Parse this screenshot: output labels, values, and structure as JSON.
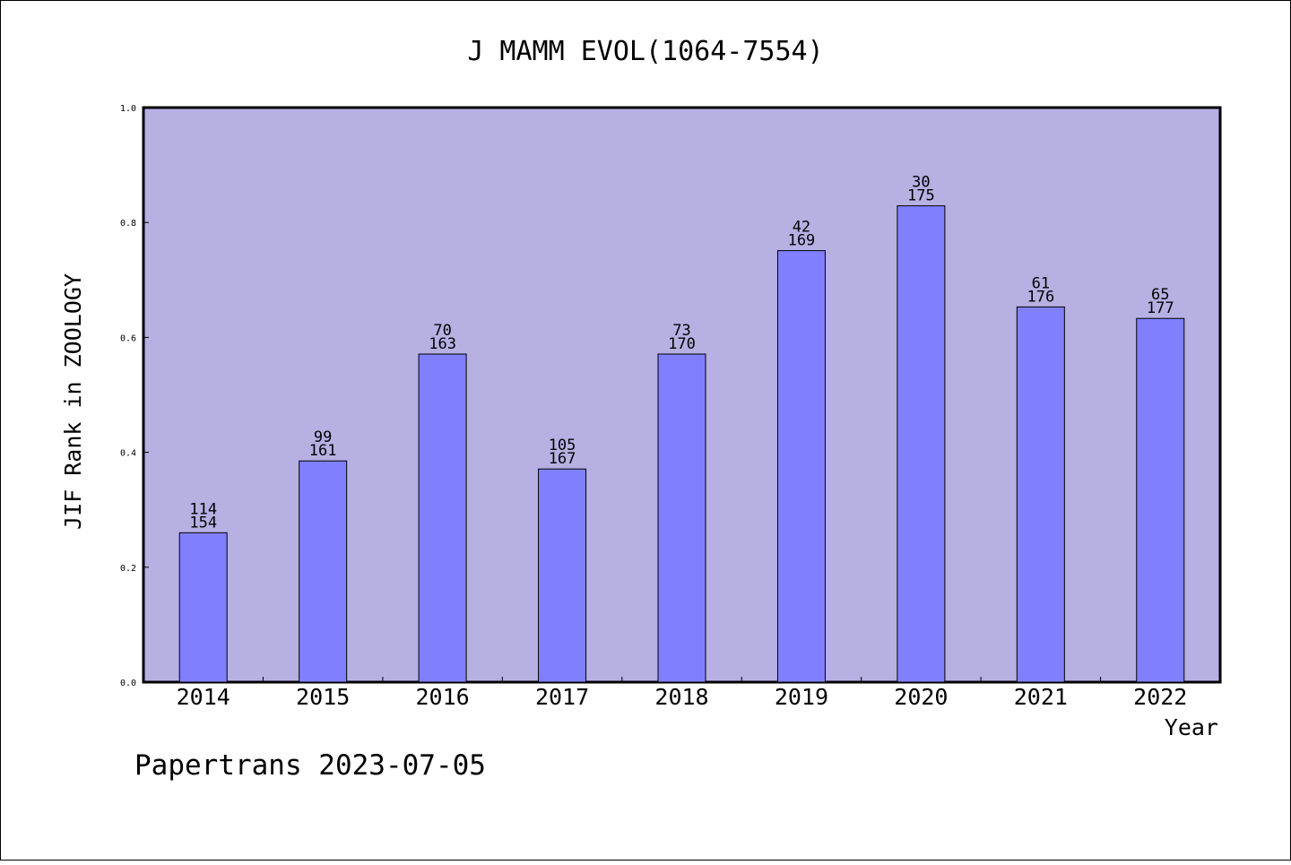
{
  "chart_data": {
    "type": "bar",
    "title": "J MAMM EVOL(1064-7554)",
    "xlabel": "Year",
    "ylabel": "JIF Rank in ZOOLOGY",
    "categories": [
      "2014",
      "2015",
      "2016",
      "2017",
      "2018",
      "2019",
      "2020",
      "2021",
      "2022"
    ],
    "values": [
      0.26,
      0.385,
      0.571,
      0.371,
      0.571,
      0.751,
      0.829,
      0.653,
      0.633
    ],
    "rank": [
      "114",
      "99",
      "70",
      "105",
      "73",
      "42",
      "30",
      "61",
      "65"
    ],
    "total": [
      "154",
      "161",
      "163",
      "167",
      "170",
      "169",
      "175",
      "176",
      "177"
    ],
    "ylim": [
      0.0,
      1.0
    ],
    "yticks": [
      "0.0",
      "0.2",
      "0.4",
      "0.6",
      "0.8",
      "1.0"
    ],
    "grid": false,
    "colors": {
      "plot_background": "#b6b0e3",
      "bar_fill": "#8080ff",
      "bar_edge": "#000000"
    }
  },
  "footer": "Papertrans 2023-07-05"
}
